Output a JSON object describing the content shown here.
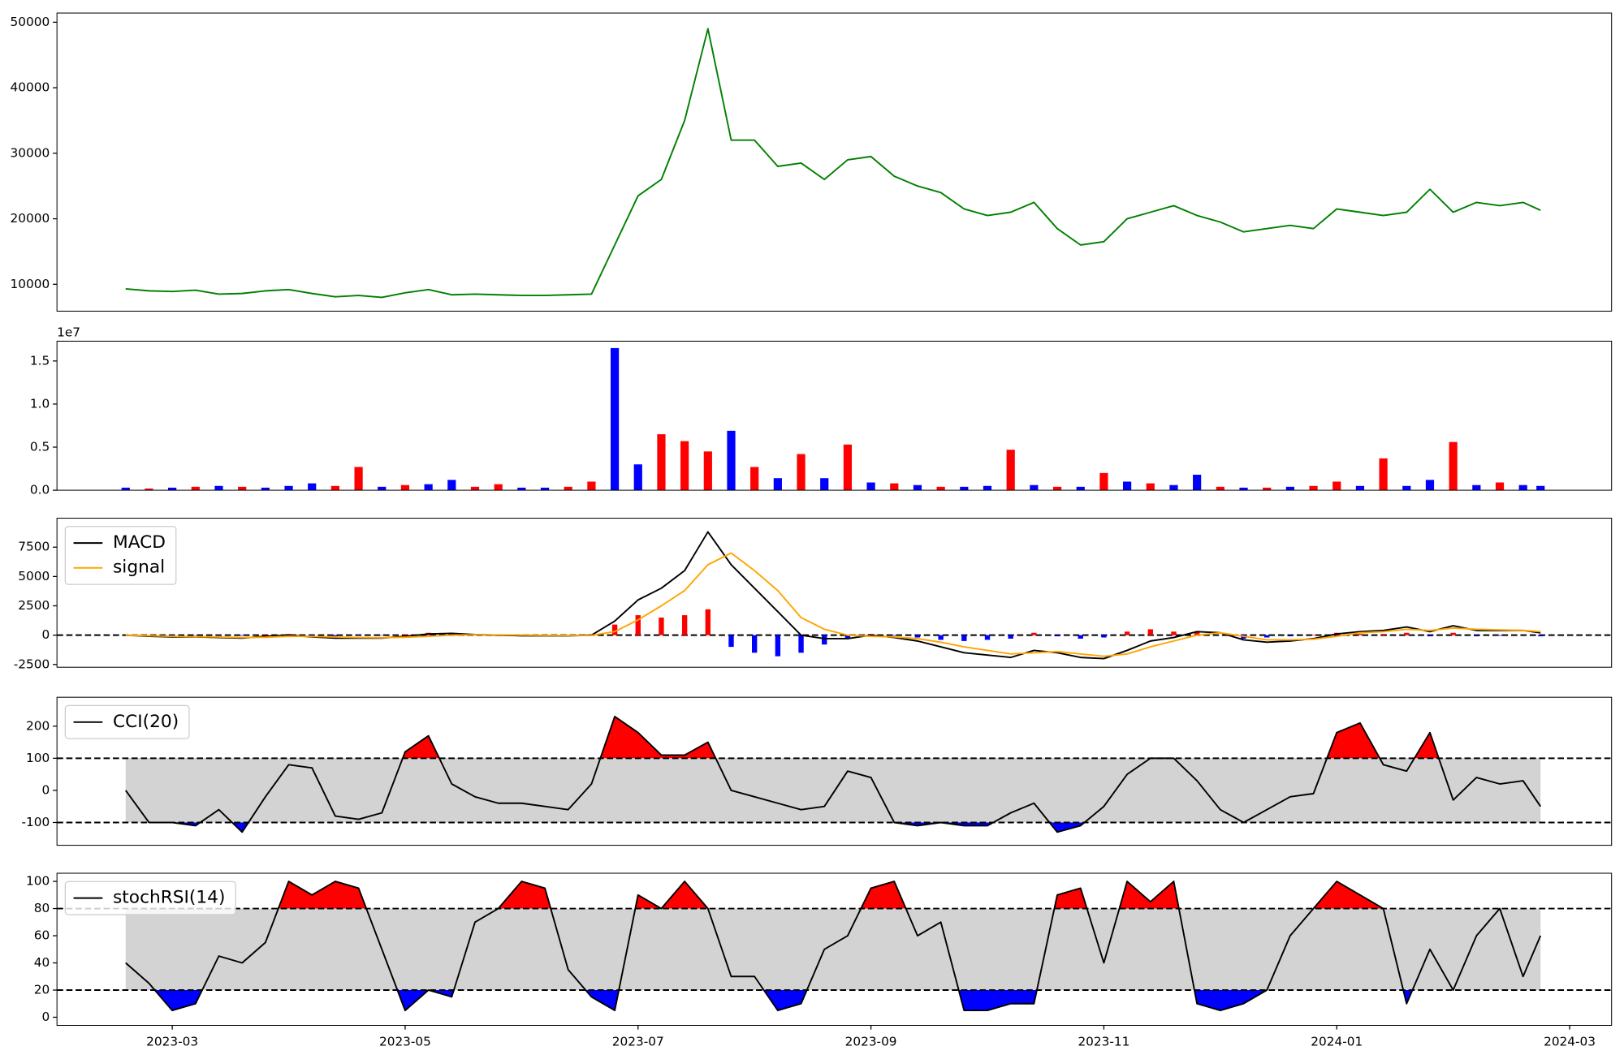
{
  "chart_data": [
    {
      "type": "line",
      "color": "green",
      "x": [
        -0.4,
        -0.2,
        0,
        0.2,
        0.4,
        0.6,
        0.8,
        1,
        1.2,
        1.4,
        1.6,
        1.8,
        2,
        2.2,
        2.4,
        2.6,
        2.8,
        3,
        3.2,
        3.4,
        3.6,
        3.8,
        4,
        4.2,
        4.4,
        4.6,
        4.8,
        5,
        5.2,
        5.4,
        5.6,
        5.8,
        6,
        6.2,
        6.4,
        6.6,
        6.8,
        7,
        7.2,
        7.4,
        7.6,
        7.8,
        8,
        8.2,
        8.4,
        8.6,
        8.8,
        9,
        9.2,
        9.4,
        9.6,
        9.8,
        10,
        10.2,
        10.4,
        10.6,
        10.8,
        11,
        11.2,
        11.4,
        11.6,
        11.75
      ],
      "values": [
        9300,
        9000,
        8900,
        9100,
        8500,
        8600,
        9000,
        9200,
        8600,
        8100,
        8300,
        8000,
        8700,
        9200,
        8400,
        8500,
        8400,
        8300,
        8300,
        8400,
        8500,
        16000,
        23500,
        26000,
        35000,
        49000,
        32000,
        32000,
        28000,
        28500,
        26000,
        29000,
        29500,
        26500,
        25000,
        24000,
        21500,
        20500,
        21000,
        22500,
        18500,
        16000,
        16500,
        20000,
        21000,
        22000,
        20500,
        19500,
        18000,
        18500,
        19000,
        18500,
        21500,
        21000,
        20500,
        21000,
        24500,
        21000,
        22500,
        22000,
        22500,
        21300
      ],
      "xlim": [
        -0.99,
        12.36
      ],
      "ylim": [
        5900,
        51400
      ],
      "yticks": [
        10000,
        20000,
        30000,
        40000,
        50000
      ]
    },
    {
      "type": "bar",
      "offset_label": "1e7",
      "x": [
        -0.4,
        -0.2,
        0,
        0.2,
        0.4,
        0.6,
        0.8,
        1,
        1.2,
        1.4,
        1.6,
        1.8,
        2,
        2.2,
        2.4,
        2.6,
        2.8,
        3,
        3.2,
        3.4,
        3.6,
        3.8,
        4,
        4.2,
        4.4,
        4.6,
        4.8,
        5,
        5.2,
        5.4,
        5.6,
        5.8,
        6,
        6.2,
        6.4,
        6.6,
        6.8,
        7,
        7.2,
        7.4,
        7.6,
        7.8,
        8,
        8.2,
        8.4,
        8.6,
        8.8,
        9,
        9.2,
        9.4,
        9.6,
        9.8,
        10,
        10.2,
        10.4,
        10.6,
        10.8,
        11,
        11.2,
        11.4,
        11.6,
        11.75
      ],
      "values": [
        0.03,
        0.02,
        0.03,
        0.04,
        0.05,
        0.04,
        0.03,
        0.05,
        0.08,
        0.05,
        0.27,
        0.04,
        0.06,
        0.07,
        0.12,
        0.04,
        0.07,
        0.03,
        0.03,
        0.04,
        0.1,
        1.65,
        0.3,
        0.65,
        0.57,
        0.45,
        0.69,
        0.27,
        0.14,
        0.42,
        0.14,
        0.53,
        0.09,
        0.08,
        0.06,
        0.04,
        0.04,
        0.05,
        0.47,
        0.06,
        0.04,
        0.04,
        0.2,
        0.1,
        0.08,
        0.06,
        0.18,
        0.04,
        0.03,
        0.03,
        0.04,
        0.05,
        0.1,
        0.05,
        0.37,
        0.05,
        0.12,
        0.56,
        0.06,
        0.09,
        0.06,
        0.05
      ],
      "colors": [
        "blue",
        "red",
        "blue",
        "red",
        "blue",
        "red",
        "blue",
        "blue",
        "blue",
        "red",
        "red",
        "blue",
        "red",
        "blue",
        "blue",
        "red",
        "red",
        "blue",
        "blue",
        "red",
        "red",
        "blue",
        "blue",
        "red",
        "red",
        "red",
        "blue",
        "red",
        "blue",
        "red",
        "blue",
        "red",
        "blue",
        "red",
        "blue",
        "red",
        "blue",
        "blue",
        "red",
        "blue",
        "red",
        "blue",
        "red",
        "blue",
        "red",
        "blue",
        "blue",
        "red",
        "blue",
        "red",
        "blue",
        "red",
        "red",
        "blue",
        "red",
        "blue",
        "blue",
        "red",
        "blue",
        "red",
        "blue",
        "blue"
      ],
      "xlim": [
        -0.99,
        12.36
      ],
      "ylim": [
        0,
        1.73
      ],
      "yticks": [
        {
          "value": 0,
          "label": "0.0"
        },
        {
          "value": 0.5,
          "label": "0.5"
        },
        {
          "value": 1,
          "label": "1.0"
        },
        {
          "value": 1.5,
          "label": "1.5"
        }
      ]
    },
    {
      "type": "line",
      "legend": "upper left",
      "hlines": [
        0
      ],
      "x": [
        -0.4,
        -0.2,
        0,
        0.2,
        0.4,
        0.6,
        0.8,
        1,
        1.2,
        1.4,
        1.6,
        1.8,
        2,
        2.2,
        2.4,
        2.6,
        2.8,
        3,
        3.2,
        3.4,
        3.6,
        3.8,
        4,
        4.2,
        4.4,
        4.6,
        4.8,
        5,
        5.2,
        5.4,
        5.6,
        5.8,
        6,
        6.2,
        6.4,
        6.6,
        6.8,
        7,
        7.2,
        7.4,
        7.6,
        7.8,
        8,
        8.2,
        8.4,
        8.6,
        8.8,
        9,
        9.2,
        9.4,
        9.6,
        9.8,
        10,
        10.2,
        10.4,
        10.6,
        10.8,
        11,
        11.2,
        11.4,
        11.6,
        11.75
      ],
      "series": [
        {
          "name": "MACD",
          "color": "black",
          "values": [
            0,
            -100,
            -150,
            -150,
            -200,
            -250,
            -100,
            0,
            -150,
            -250,
            -250,
            -250,
            -100,
            100,
            150,
            50,
            0,
            -50,
            -50,
            -50,
            0,
            1200,
            3000,
            4000,
            5500,
            8800,
            6000,
            4000,
            2000,
            0,
            -300,
            -300,
            0,
            -200,
            -500,
            -1000,
            -1500,
            -1700,
            -1900,
            -1300,
            -1500,
            -1900,
            -2000,
            -1300,
            -500,
            -200,
            300,
            200,
            -400,
            -600,
            -500,
            -300,
            100,
            300,
            400,
            700,
            300,
            800,
            400,
            400,
            400,
            200
          ]
        },
        {
          "name": "signal",
          "color": "orange",
          "values": [
            0,
            -50,
            -100,
            -130,
            -160,
            -200,
            -180,
            -100,
            -110,
            -160,
            -200,
            -220,
            -180,
            -100,
            0,
            30,
            20,
            0,
            -20,
            -30,
            -20,
            300,
            1300,
            2500,
            3800,
            6000,
            7000,
            5500,
            3800,
            1500,
            500,
            0,
            -100,
            -150,
            -300,
            -600,
            -1000,
            -1300,
            -1600,
            -1500,
            -1400,
            -1600,
            -1800,
            -1600,
            -1000,
            -500,
            0,
            200,
            -100,
            -400,
            -400,
            -350,
            -100,
            200,
            300,
            500,
            400,
            600,
            500,
            450,
            400,
            300
          ]
        }
      ],
      "histogram": {
        "pos_color": "red",
        "neg_color": "blue",
        "values": [
          0,
          -50,
          -50,
          -20,
          -40,
          -50,
          80,
          100,
          -40,
          -90,
          -50,
          -30,
          80,
          200,
          150,
          20,
          -20,
          -50,
          -30,
          -20,
          20,
          900,
          1700,
          1500,
          1700,
          2200,
          -1000,
          -1500,
          -1800,
          -1500,
          -800,
          -300,
          100,
          -50,
          -200,
          -400,
          -500,
          -400,
          -300,
          200,
          -100,
          -300,
          -200,
          300,
          500,
          300,
          300,
          0,
          -300,
          -200,
          -100,
          50,
          200,
          100,
          100,
          200,
          -100,
          200,
          -100,
          -50,
          0,
          -100
        ]
      },
      "xlim": [
        -0.99,
        12.36
      ],
      "ylim": [
        -2736,
        9970
      ],
      "yticks": [
        -2500,
        0,
        2500,
        5000,
        7500
      ]
    },
    {
      "type": "line",
      "legend": "upper left",
      "bands": {
        "upper": 100,
        "lower": -100,
        "upper_color": "red",
        "lower_color": "blue",
        "band_color": "lightgray"
      },
      "x": [
        -0.4,
        -0.2,
        0,
        0.2,
        0.4,
        0.6,
        0.8,
        1,
        1.2,
        1.4,
        1.6,
        1.8,
        2,
        2.2,
        2.4,
        2.6,
        2.8,
        3,
        3.2,
        3.4,
        3.6,
        3.8,
        4,
        4.2,
        4.4,
        4.6,
        4.8,
        5,
        5.2,
        5.4,
        5.6,
        5.8,
        6,
        6.2,
        6.4,
        6.6,
        6.8,
        7,
        7.2,
        7.4,
        7.6,
        7.8,
        8,
        8.2,
        8.4,
        8.6,
        8.8,
        9,
        9.2,
        9.4,
        9.6,
        9.8,
        10,
        10.2,
        10.4,
        10.6,
        10.8,
        11,
        11.2,
        11.4,
        11.6,
        11.75
      ],
      "series": [
        {
          "name": "CCI(20)",
          "color": "black",
          "values": [
            0,
            -100,
            -100,
            -110,
            -60,
            -130,
            -20,
            80,
            70,
            -80,
            -90,
            -70,
            120,
            170,
            20,
            -20,
            -40,
            -40,
            -50,
            -60,
            20,
            230,
            180,
            110,
            110,
            150,
            0,
            -20,
            -40,
            -60,
            -50,
            60,
            40,
            -100,
            -110,
            -100,
            -110,
            -110,
            -70,
            -40,
            -130,
            -110,
            -50,
            50,
            100,
            100,
            30,
            -60,
            -100,
            -60,
            -20,
            -10,
            180,
            210,
            80,
            60,
            180,
            -30,
            40,
            20,
            30,
            -50
          ]
        }
      ],
      "xlim": [
        -0.99,
        12.36
      ],
      "ylim": [
        -171,
        290
      ],
      "yticks": [
        -100,
        0,
        100,
        200
      ]
    },
    {
      "type": "line",
      "legend": "upper left",
      "bands": {
        "upper": 80,
        "lower": 20,
        "upper_color": "red",
        "lower_color": "blue",
        "band_color": "lightgray"
      },
      "x": [
        -0.4,
        -0.2,
        0,
        0.2,
        0.4,
        0.6,
        0.8,
        1,
        1.2,
        1.4,
        1.6,
        1.8,
        2,
        2.2,
        2.4,
        2.6,
        2.8,
        3,
        3.2,
        3.4,
        3.6,
        3.8,
        4,
        4.2,
        4.4,
        4.6,
        4.8,
        5,
        5.2,
        5.4,
        5.6,
        5.8,
        6,
        6.2,
        6.4,
        6.6,
        6.8,
        7,
        7.2,
        7.4,
        7.6,
        7.8,
        8,
        8.2,
        8.4,
        8.6,
        8.8,
        9,
        9.2,
        9.4,
        9.6,
        9.8,
        10,
        10.2,
        10.4,
        10.6,
        10.8,
        11,
        11.2,
        11.4,
        11.6,
        11.75
      ],
      "series": [
        {
          "name": "stochRSI(14)",
          "color": "black",
          "values": [
            40,
            25,
            5,
            10,
            45,
            40,
            55,
            100,
            90,
            100,
            95,
            50,
            5,
            20,
            15,
            70,
            80,
            100,
            95,
            35,
            15,
            5,
            90,
            80,
            100,
            80,
            30,
            30,
            5,
            10,
            50,
            60,
            95,
            100,
            60,
            70,
            5,
            5,
            10,
            10,
            90,
            95,
            40,
            100,
            85,
            100,
            10,
            5,
            10,
            20,
            60,
            80,
            100,
            90,
            80,
            10,
            50,
            20,
            60,
            80,
            30,
            60
          ]
        }
      ],
      "xlim": [
        -0.99,
        12.36
      ],
      "ylim": [
        -6,
        106
      ],
      "yticks": [
        0,
        20,
        40,
        60,
        80,
        100
      ],
      "xticks": [
        {
          "value": 0,
          "label": "2023-03"
        },
        {
          "value": 2,
          "label": "2023-05"
        },
        {
          "value": 4,
          "label": "2023-07"
        },
        {
          "value": 6,
          "label": "2023-09"
        },
        {
          "value": 8,
          "label": "2023-11"
        },
        {
          "value": 10,
          "label": "2024-01"
        },
        {
          "value": 12,
          "label": "2024-03"
        }
      ]
    }
  ]
}
